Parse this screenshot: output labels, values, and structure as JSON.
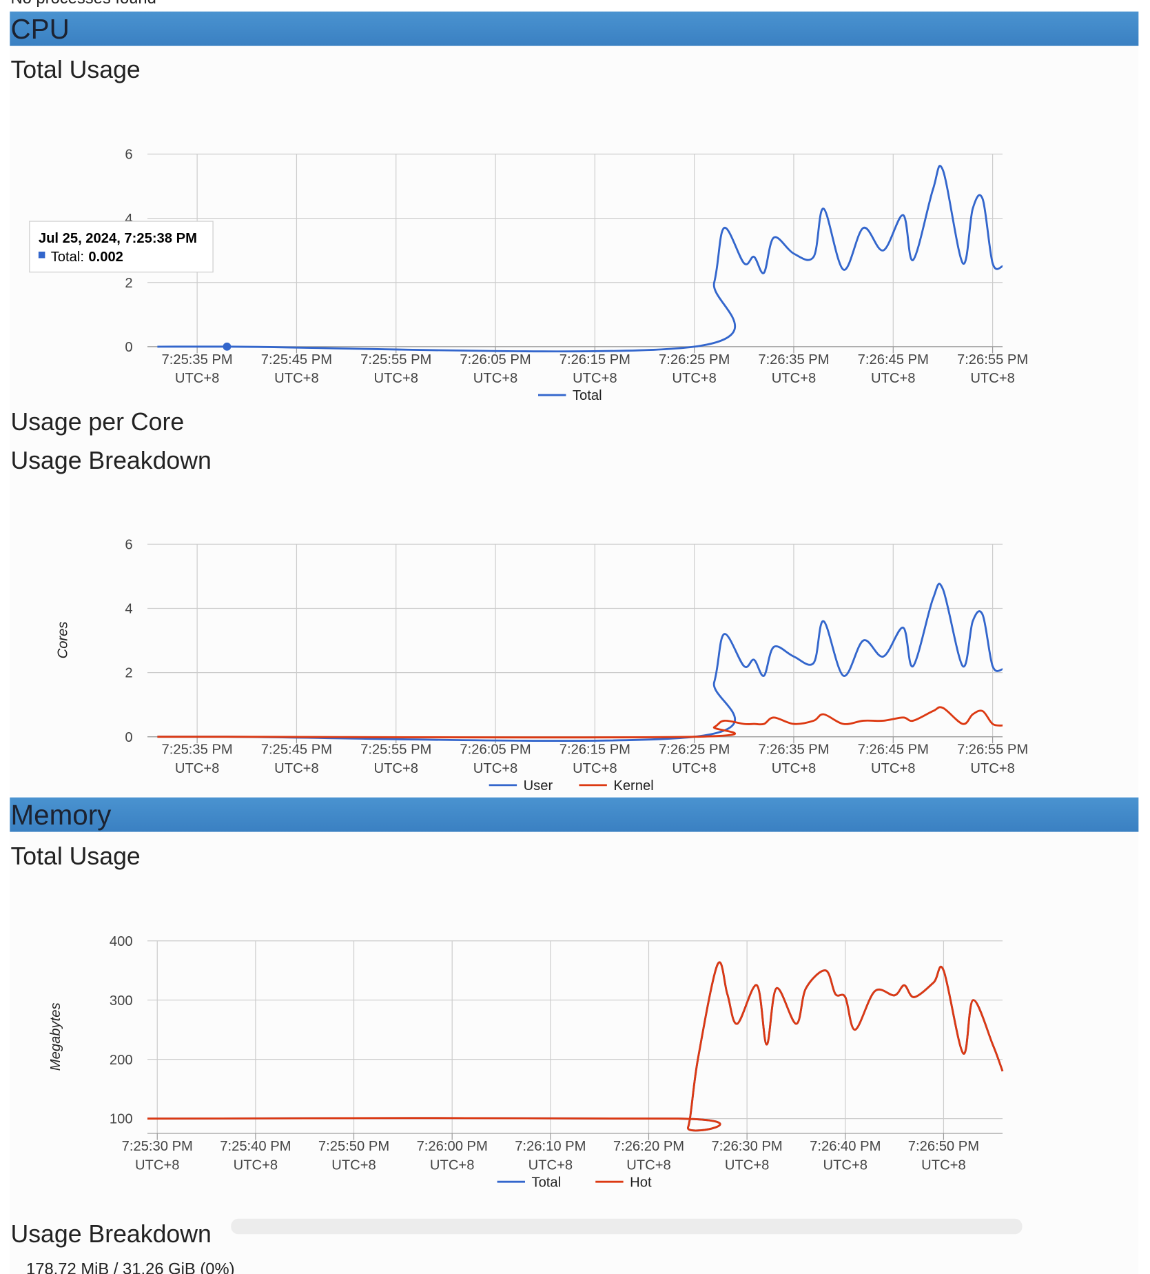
{
  "page": {
    "top_note": "No processes found",
    "cpu_header": "CPU",
    "cpu_total_title": "Total Usage",
    "cpu_per_core_title": "Usage per Core",
    "cpu_breakdown_title": "Usage Breakdown",
    "memory_header": "Memory",
    "memory_total_title": "Total Usage",
    "memory_breakdown_title": "Usage Breakdown",
    "memory_summary": "178.72 MiB / 31.26 GiB (0%)"
  },
  "chart_data": [
    {
      "type": "line",
      "timezone": "UTC+8",
      "grid": true,
      "legend": "bottom",
      "x": [
        "7:25:31 PM",
        "7:25:38 PM",
        "7:26:25 PM",
        "7:26:27 PM",
        "7:26:28 PM",
        "7:26:30 PM",
        "7:26:31 PM",
        "7:26:32 PM",
        "7:26:33 PM",
        "7:26:35 PM",
        "7:26:37 PM",
        "7:26:38 PM",
        "7:26:40 PM",
        "7:26:42 PM",
        "7:26:44 PM",
        "7:26:46 PM",
        "7:26:47 PM",
        "7:26:49 PM",
        "7:26:50 PM",
        "7:26:52 PM",
        "7:26:53 PM",
        "7:26:54 PM",
        "7:26:55 PM",
        "7:26:56 PM"
      ],
      "series": [
        {
          "name": "Total",
          "color": "#3366cc",
          "values": [
            0,
            0.002,
            0,
            2.0,
            3.7,
            2.6,
            2.8,
            2.3,
            3.4,
            2.9,
            2.8,
            4.3,
            2.4,
            3.7,
            3.0,
            4.1,
            2.7,
            4.9,
            5.5,
            2.6,
            4.3,
            4.6,
            2.6,
            2.5
          ]
        }
      ],
      "xlim": [
        "7:25:30 PM",
        "7:26:56 PM"
      ],
      "xticks": [
        "7:25:35 PM",
        "7:25:45 PM",
        "7:25:55 PM",
        "7:26:05 PM",
        "7:26:15 PM",
        "7:26:25 PM",
        "7:26:35 PM",
        "7:26:45 PM",
        "7:26:55 PM"
      ],
      "ylim": [
        0,
        6
      ],
      "yticks": [
        0,
        2,
        4,
        6
      ],
      "tooltip": {
        "title": "Jul 25, 2024, 7:25:38 PM",
        "label": "Total:",
        "value": 0.002
      }
    },
    {
      "type": "line",
      "timezone": "UTC+8",
      "grid": true,
      "legend": "bottom",
      "y_label": "Cores",
      "x": [
        "7:25:31 PM",
        "7:25:38 PM",
        "7:26:25 PM",
        "7:26:27 PM",
        "7:26:28 PM",
        "7:26:30 PM",
        "7:26:31 PM",
        "7:26:32 PM",
        "7:26:33 PM",
        "7:26:35 PM",
        "7:26:37 PM",
        "7:26:38 PM",
        "7:26:40 PM",
        "7:26:42 PM",
        "7:26:44 PM",
        "7:26:46 PM",
        "7:26:47 PM",
        "7:26:49 PM",
        "7:26:50 PM",
        "7:26:52 PM",
        "7:26:53 PM",
        "7:26:54 PM",
        "7:26:55 PM",
        "7:26:56 PM"
      ],
      "series": [
        {
          "name": "User",
          "color": "#3366cc",
          "values": [
            0,
            0,
            0,
            1.7,
            3.2,
            2.2,
            2.4,
            1.9,
            2.8,
            2.5,
            2.3,
            3.6,
            1.9,
            3.0,
            2.5,
            3.4,
            2.2,
            4.3,
            4.6,
            2.2,
            3.6,
            3.8,
            2.2,
            2.1
          ]
        },
        {
          "name": "Kernel",
          "color": "#dc3912",
          "values": [
            0,
            0,
            0,
            0.3,
            0.5,
            0.4,
            0.4,
            0.4,
            0.6,
            0.4,
            0.5,
            0.7,
            0.4,
            0.5,
            0.5,
            0.6,
            0.5,
            0.8,
            0.9,
            0.4,
            0.7,
            0.8,
            0.4,
            0.35
          ]
        }
      ],
      "xlim": [
        "7:25:30 PM",
        "7:26:56 PM"
      ],
      "xticks": [
        "7:25:35 PM",
        "7:25:45 PM",
        "7:25:55 PM",
        "7:26:05 PM",
        "7:26:15 PM",
        "7:26:25 PM",
        "7:26:35 PM",
        "7:26:45 PM",
        "7:26:55 PM"
      ],
      "ylim": [
        0,
        6
      ],
      "yticks": [
        0,
        2,
        4,
        6
      ]
    },
    {
      "type": "line",
      "timezone": "UTC+8",
      "grid": true,
      "legend": "bottom",
      "y_label": "Megabytes",
      "x": [
        "7:25:29 PM",
        "7:26:23 PM",
        "7:26:24 PM",
        "7:26:25 PM",
        "7:26:27 PM",
        "7:26:28 PM",
        "7:26:29 PM",
        "7:26:31 PM",
        "7:26:32 PM",
        "7:26:33 PM",
        "7:26:35 PM",
        "7:26:36 PM",
        "7:26:38 PM",
        "7:26:39 PM",
        "7:26:40 PM",
        "7:26:41 PM",
        "7:26:43 PM",
        "7:26:45 PM",
        "7:26:46 PM",
        "7:26:47 PM",
        "7:26:49 PM",
        "7:26:50 PM",
        "7:26:52 PM",
        "7:26:53 PM",
        "7:26:55 PM",
        "7:26:56 PM"
      ],
      "series": [
        {
          "name": "Total",
          "color": "#3366cc",
          "values": [
            100,
            100,
            85,
            200,
            360,
            310,
            260,
            325,
            225,
            320,
            260,
            320,
            350,
            310,
            305,
            250,
            315,
            308,
            325,
            305,
            330,
            350,
            210,
            300,
            225,
            180
          ]
        },
        {
          "name": "Hot",
          "color": "#dc3912",
          "values": [
            100,
            100,
            85,
            200,
            360,
            310,
            260,
            325,
            225,
            320,
            260,
            320,
            350,
            310,
            305,
            250,
            315,
            308,
            325,
            305,
            330,
            350,
            210,
            300,
            225,
            180
          ]
        }
      ],
      "xlim": [
        "7:25:29 PM",
        "7:26:56 PM"
      ],
      "xticks": [
        "7:25:30 PM",
        "7:25:40 PM",
        "7:25:50 PM",
        "7:26:00 PM",
        "7:26:10 PM",
        "7:26:20 PM",
        "7:26:30 PM",
        "7:26:40 PM",
        "7:26:50 PM"
      ],
      "ylim": [
        75,
        400
      ],
      "yticks": [
        100,
        200,
        300,
        400
      ]
    }
  ]
}
